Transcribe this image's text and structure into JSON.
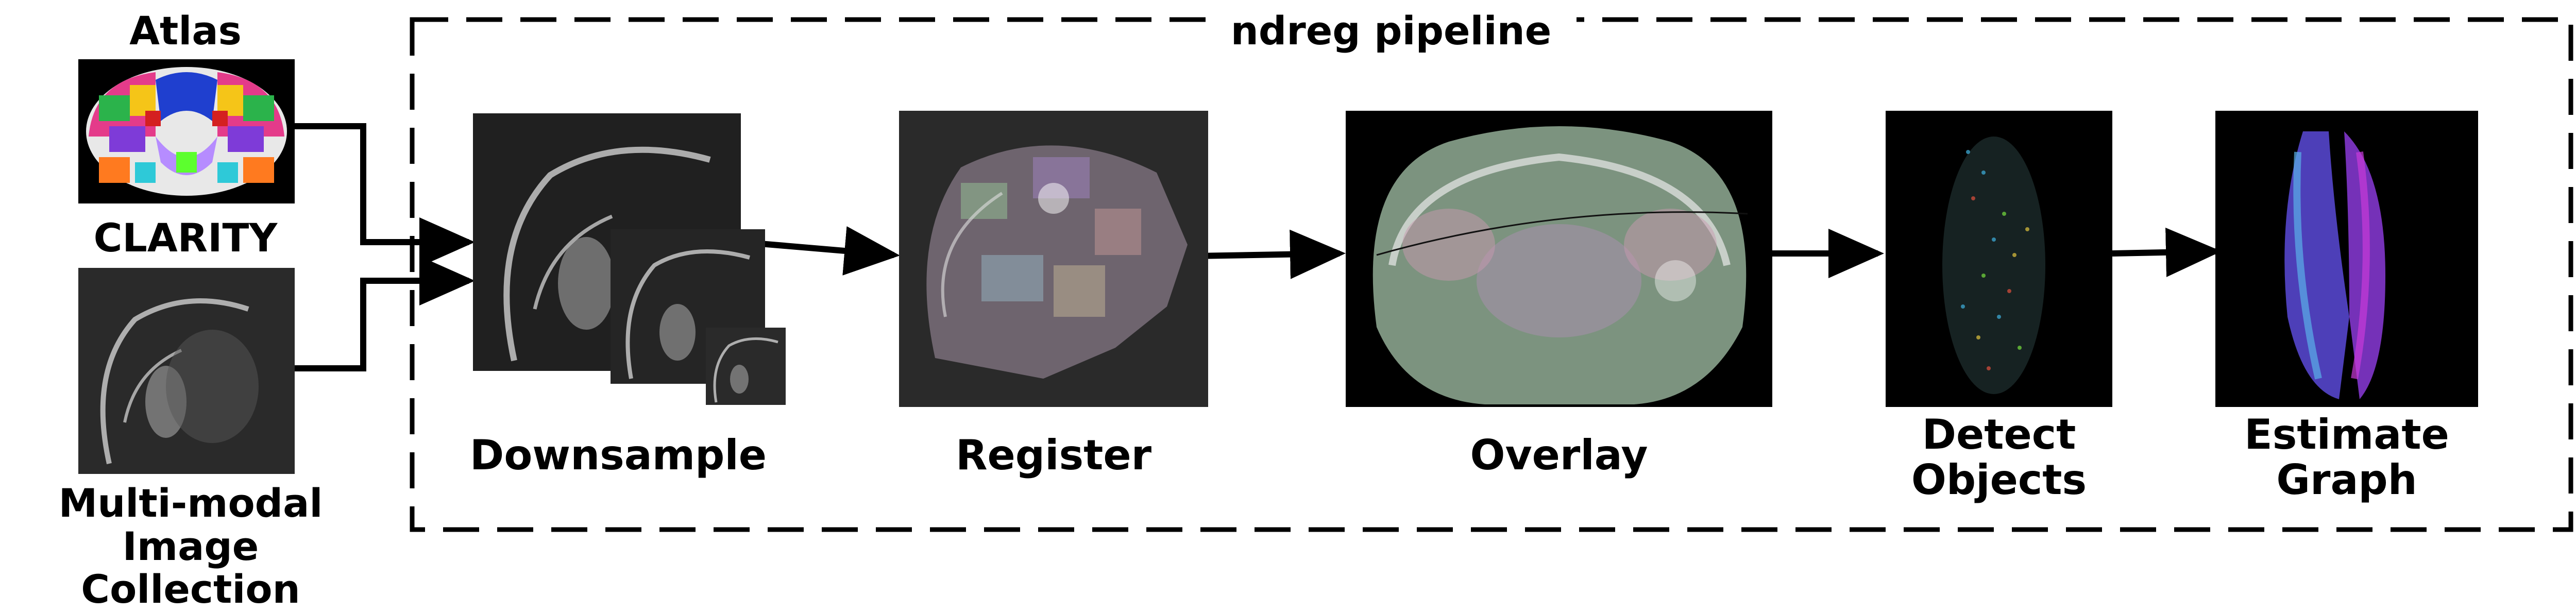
{
  "inputs": {
    "atlas_label": "Atlas",
    "clarity_label": "CLARITY",
    "collection_label_line1": "Multi-modal",
    "collection_label_line2": "Image Collection"
  },
  "pipeline": {
    "title": "ndreg pipeline",
    "steps": [
      {
        "label_line1": "Downsample",
        "label_line2": ""
      },
      {
        "label_line1": "Register",
        "label_line2": ""
      },
      {
        "label_line1": "Overlay",
        "label_line2": ""
      },
      {
        "label_line1": "Detect",
        "label_line2": "Objects"
      },
      {
        "label_line1": "Estimate",
        "label_line2": "Graph"
      }
    ]
  },
  "colors": {
    "arrow": "#000000",
    "border": "#000000",
    "image_bg": "#1a1a1a"
  }
}
